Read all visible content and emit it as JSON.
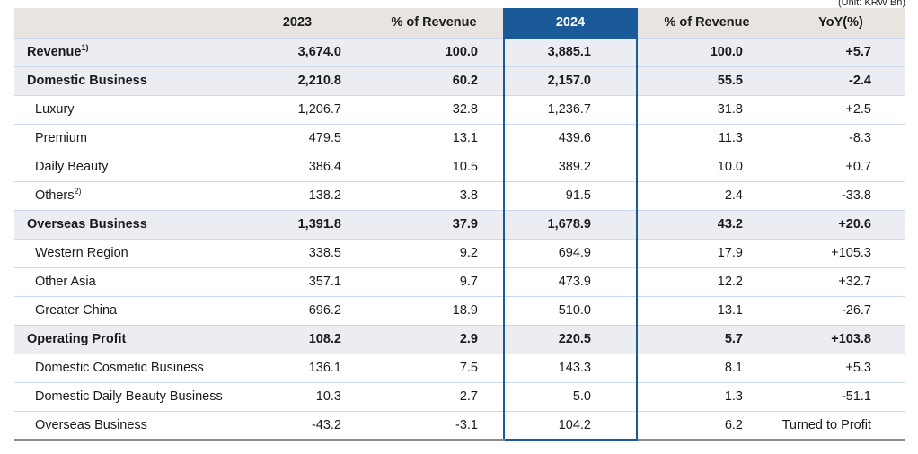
{
  "unit_label": "(Unit: KRW Bn)",
  "colors": {
    "accent_blue": "#1a5a98",
    "header_bg": "#e8e5e0",
    "emphasis_row_bg": "#ecedf3",
    "divider": "#ccd8ec",
    "bottom_rule": "#8a8a8a",
    "text": "#1a1a1a"
  },
  "table": {
    "columns": [
      "",
      "2023",
      "% of Revenue",
      "2024",
      "% of Revenue",
      "YoY(%)"
    ],
    "highlighted_column": "2024",
    "rows": [
      {
        "label": "Revenue",
        "sup": "1)",
        "style": "emphasis",
        "values": [
          "3,674.0",
          "100.0",
          "3,885.1",
          "100.0",
          "+5.7"
        ]
      },
      {
        "label": "Domestic Business",
        "style": "emphasis",
        "values": [
          "2,210.8",
          "60.2",
          "2,157.0",
          "55.5",
          "-2.4"
        ]
      },
      {
        "label": "Luxury",
        "style": "sub",
        "values": [
          "1,206.7",
          "32.8",
          "1,236.7",
          "31.8",
          "+2.5"
        ]
      },
      {
        "label": "Premium",
        "style": "sub",
        "values": [
          "479.5",
          "13.1",
          "439.6",
          "11.3",
          "-8.3"
        ]
      },
      {
        "label": "Daily Beauty",
        "style": "sub",
        "values": [
          "386.4",
          "10.5",
          "389.2",
          "10.0",
          "+0.7"
        ]
      },
      {
        "label": "Others",
        "sup": "2)",
        "style": "sub",
        "values": [
          "138.2",
          "3.8",
          "91.5",
          "2.4",
          "-33.8"
        ]
      },
      {
        "label": "Overseas Business",
        "style": "emphasis",
        "values": [
          "1,391.8",
          "37.9",
          "1,678.9",
          "43.2",
          "+20.6"
        ]
      },
      {
        "label": "Western Region",
        "style": "sub",
        "values": [
          "338.5",
          "9.2",
          "694.9",
          "17.9",
          "+105.3"
        ]
      },
      {
        "label": "Other Asia",
        "style": "sub",
        "values": [
          "357.1",
          "9.7",
          "473.9",
          "12.2",
          "+32.7"
        ]
      },
      {
        "label": "Greater China",
        "style": "sub",
        "values": [
          "696.2",
          "18.9",
          "510.0",
          "13.1",
          "-26.7"
        ]
      },
      {
        "label": "Operating Profit",
        "style": "emphasis",
        "values": [
          "108.2",
          "2.9",
          "220.5",
          "5.7",
          "+103.8"
        ]
      },
      {
        "label": "Domestic Cosmetic Business",
        "style": "sub",
        "values": [
          "136.1",
          "7.5",
          "143.3",
          "8.1",
          "+5.3"
        ]
      },
      {
        "label": "Domestic Daily Beauty Business",
        "style": "sub",
        "values": [
          "10.3",
          "2.7",
          "5.0",
          "1.3",
          "-51.1"
        ]
      },
      {
        "label": "Overseas Business",
        "style": "sub",
        "values": [
          "-43.2",
          "-3.1",
          "104.2",
          "6.2",
          "Turned to Profit"
        ]
      }
    ]
  }
}
